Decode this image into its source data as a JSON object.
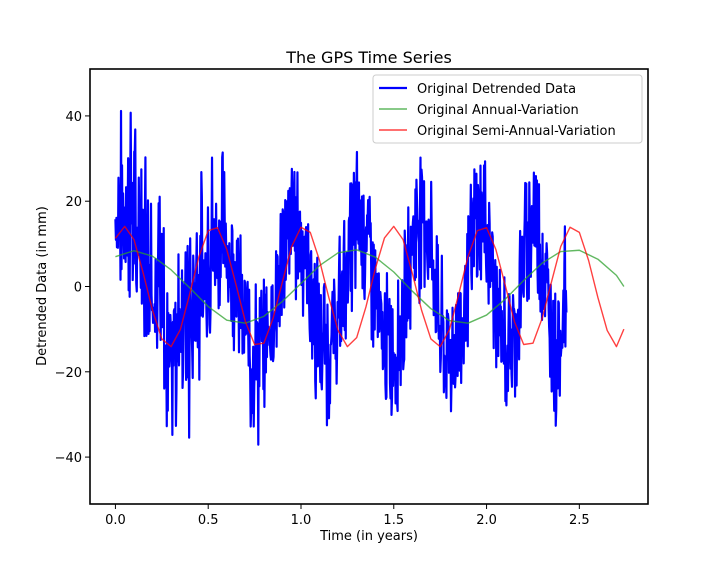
{
  "chart_data": {
    "type": "line",
    "title": "The GPS Time Series",
    "xlabel": "Time (in years)",
    "ylabel": "Detrended Data (in mm)",
    "xlim": [
      -0.137,
      2.87
    ],
    "ylim": [
      -51,
      51
    ],
    "xticks": [
      0.0,
      0.5,
      1.0,
      1.5,
      2.0,
      2.5
    ],
    "xtick_labels": [
      "0.0",
      "0.5",
      "1.0",
      "1.5",
      "2.0",
      "2.5"
    ],
    "yticks": [
      -40,
      -20,
      0,
      20,
      40
    ],
    "ytick_labels": [
      "−40",
      "−20",
      "0",
      "20",
      "40"
    ],
    "grid": false,
    "legend_position": "top-right",
    "series": [
      {
        "name": "Original Detrended Data",
        "color": "#0000ff",
        "x_start": 0.0,
        "x_step": 0.00274,
        "values": [
          15.3,
          24.0,
          17.5,
          15.6,
          14.4,
          11.3,
          26.5,
          21.1,
          18.1,
          16.4,
          15.4,
          24.1,
          14.6,
          20.3,
          13.2,
          20.0,
          16.2,
          11.2,
          19.3,
          18.0,
          11.4,
          29.1,
          9.5,
          11.2,
          13.6,
          21.5,
          11.9,
          36.0,
          10.4,
          15.2,
          31.0,
          22.6,
          12.3,
          26.3,
          10.8,
          5.9,
          8.1,
          16.7,
          15.7,
          28.7,
          14.7,
          7.0,
          7.5,
          6.1,
          12.8,
          21.9,
          24.0,
          17.8,
          5.6,
          4.2,
          5.9,
          20.0,
          12.5,
          0.9,
          9.4,
          13.5,
          16.0,
          5.0,
          11.8,
          25.6,
          6.7,
          -5.7,
          11.8,
          13.3,
          17.0,
          3.6,
          0.2,
          -3.3,
          6.7,
          11.3,
          17.8,
          -2.9,
          -12.9,
          2.8,
          -2.1,
          9.3,
          3.7,
          6.9,
          -7.6,
          0.5,
          3.3,
          -0.2,
          -18.6,
          -10.8,
          3.1,
          10.5,
          -2.3,
          8.6,
          -8.8,
          -20.0,
          6.4,
          -0.6,
          -12.2,
          -13.2,
          -8.3,
          1.1,
          -10.7,
          -27.8,
          -13.8,
          -14.9,
          -8.3,
          -22.2,
          -13.7,
          -15.7,
          0.1,
          -7.6,
          -18.6,
          -18.0,
          -11.4,
          -4.4,
          -21.5,
          -3.0,
          -31.4,
          -5.9,
          -8.5,
          2.8,
          -4.8,
          -18.0,
          2.0,
          -24.2,
          -17.6,
          -10.0,
          -11.1,
          -10.3,
          1.6,
          -13.0,
          -20.7,
          -11.2,
          -20.6,
          -1.1,
          -7.9,
          -4.1,
          -16.2,
          -11.3,
          -22.9,
          -10.3,
          5.8,
          2.5,
          -5.3,
          -15.6,
          -4.6,
          -10.2,
          -1.9,
          -0.7,
          -13.2,
          -20.4,
          -11.1,
          -0.4,
          -5.3,
          0.9,
          -19.1,
          -5.6,
          -8.0,
          5.5,
          -6.0,
          -8.3,
          -6.6,
          3.5,
          -6.3,
          6.7,
          8.3,
          4.2,
          -1.1,
          -1.2,
          4.4,
          -8.8,
          1.4,
          -4.6,
          7.8,
          12.0,
          8.9,
          -4.2,
          7.7,
          -0.8,
          4.3,
          -3.1,
          4.3,
          0.6,
          18.9,
          5.9,
          2.7,
          5.8,
          12.5,
          17.6,
          16.2,
          2.3,
          1.3,
          5.2,
          13.9,
          10.6,
          18.0,
          9.1,
          7.6,
          3.0,
          13.6,
          5.9,
          10.6,
          10.7,
          9.8,
          10.6,
          12.9,
          11.8,
          13.1,
          8.5,
          11.8,
          7.9,
          6.3,
          11.3,
          14.7,
          6.1,
          14.6,
          23.5,
          12.0,
          7.8,
          18.3,
          14.5,
          9.7,
          11.8,
          10.6,
          13.3,
          17.5,
          7.4,
          3.6,
          0.2,
          11.5,
          4.0,
          4.6,
          2.5,
          7.3,
          3.5,
          15.0,
          4.7,
          6.9,
          3.4,
          2.5,
          7.4,
          1.9,
          8.3,
          4.4,
          3.1,
          -1.4,
          -0.7,
          1.2,
          -3.7,
          -2.7,
          -6.5,
          -4.9,
          1.2,
          -3.9,
          -3.1,
          -9.8,
          -13.0,
          -10.2,
          -8.5,
          -13.0,
          -2.4,
          -9.7,
          -8.3,
          -10.1,
          -12.5,
          -10.6,
          -15.3,
          -10.1,
          -8.9,
          -14.7,
          -12.6,
          -26.2,
          -17.6,
          -16.6,
          -13.4,
          -15.5,
          -15.1,
          -17.6,
          -14.1,
          -13.5,
          -9.8,
          -13.8,
          -19.3,
          -11.0,
          -19.4,
          -8.9,
          -21.3,
          -14.2,
          -18.9,
          -12.7,
          -9.1,
          -13.0,
          -14.2,
          -14.6,
          -15.0,
          -14.5,
          -15.2,
          -16.6,
          -16.8,
          -18.6,
          -11.2,
          -6.2,
          -3.6,
          -10.8,
          -17.6,
          -11.7,
          -9.2,
          -11.9,
          -8.0,
          -12.2,
          -9.8,
          -5.0,
          -3.1,
          -6.8,
          -4.8,
          -7.6,
          -2.7,
          -5.4,
          -5.3,
          -4.2,
          -1.3,
          -0.3,
          -2.5,
          0.1,
          3.7,
          -1.4,
          -1.6,
          1.6,
          3.1,
          5.2,
          6.0,
          3.6,
          1.0,
          5.1,
          8.9,
          7.6,
          15.3,
          9.3,
          4.5,
          10.0,
          11.1,
          17.1,
          11.3,
          10.1,
          10.7,
          13.1,
          12.9,
          5.1,
          16.7,
          13.9,
          14.7,
          10.7,
          20.1,
          17.4,
          14.9,
          13.2,
          15.0,
          15.6,
          16.5,
          12.5,
          12.6,
          13.0,
          14.6,
          12.0,
          14.6,
          16.9,
          16.4,
          14.7,
          10.7,
          12.3,
          9.8,
          10.3,
          13.9,
          14.1,
          8.9,
          5.7,
          11.4,
          9.6,
          4.3,
          6.3,
          7.7,
          1.9,
          2.9,
          2.9,
          5.6,
          2.6,
          1.6,
          -0.9,
          -2.9,
          2.2,
          2.1,
          -1.5,
          -6.2,
          -8.3,
          -4.5,
          -7.3,
          -4.4,
          -4.5,
          -11.2,
          -13.9,
          -11.1,
          -7.3,
          -9.6,
          -11.7,
          -11.9,
          -12.9,
          -15.1,
          -12.2,
          -14.4,
          -13.2,
          -16.0,
          -14.4,
          -15.9,
          -15.8,
          -17.6,
          -14.0,
          -10.6,
          -11.2,
          -15.8,
          -15.8,
          -13.3,
          -20.6,
          -12.9,
          -12.5,
          -18.4,
          -16.4,
          -13.1,
          -12.8,
          -13.0,
          -18.2,
          -12.4,
          -16.4,
          -11.9,
          -11.3,
          -10.3,
          -10.3,
          -14.6,
          -12.5,
          -10.0,
          -6.5,
          -6.7,
          -9.1,
          -12.6,
          -8.0,
          -6.6,
          -5.2,
          -4.7,
          -6.2,
          -8.0,
          -4.6,
          -0.5,
          -6.2,
          -0.2,
          -1.3,
          3.0,
          1.2,
          1.4,
          4.3,
          3.3,
          -0.8,
          0.6,
          7.3,
          6.9,
          2.4,
          6.6,
          8.9,
          9.5,
          12.1,
          7.2,
          10.5,
          6.6,
          11.9,
          11.4,
          9.6,
          17.6,
          12.3,
          14.0,
          10.5,
          14.9,
          17.0,
          17.1,
          13.1,
          13.3,
          14.4,
          17.3,
          15.0,
          15.2,
          15.2,
          14.5,
          14.8,
          14.8,
          14.0,
          15.8,
          11.6,
          14.5,
          10.7,
          13.0,
          15.4,
          13.0,
          10.8,
          11.2,
          6.5,
          11.1,
          11.8,
          6.4,
          11.4,
          5.7,
          6.5,
          5.6,
          3.3,
          5.7,
          4.9,
          -0.4,
          0.9,
          1.1,
          3.3,
          -4.2,
          -3.5,
          -2.7,
          -2.2,
          -7.6,
          -6.7,
          -4.9,
          -10.5,
          -12.7,
          -10.0,
          -7.3,
          -11.2,
          -11.1,
          -15.1,
          -18.2,
          -12.2,
          -15.8,
          -13.5,
          -14.4,
          -12.1,
          -12.5,
          -13.0,
          -13.3,
          -11.3,
          -17.3,
          -11.4,
          -16.0,
          -17.9,
          -14.8,
          -16.4,
          -15.3,
          -13.5,
          -17.6,
          -16.0,
          -14.1,
          -14.9,
          -13.8,
          -15.2,
          -15.4,
          -16.3,
          -16.8,
          -14.1,
          -13.6,
          -10.6,
          -11.6,
          -11.3,
          -12.7,
          -7.7,
          -8.1,
          -11.7,
          -11.2,
          -8.5,
          -7.8,
          -6.6,
          -5.5,
          -4.3,
          -4.8,
          -6.4,
          -3.7,
          -6.6,
          -3.4,
          0.6,
          -0.5,
          -0.2,
          2.2,
          2.1,
          6.7,
          4.8,
          4.6,
          5.6,
          9.3,
          10.7,
          10.3,
          13.1,
          10.2,
          12.8,
          10.8,
          12.6,
          10.8,
          18.0,
          14.1,
          14.1,
          15.0,
          13.4,
          16.4,
          15.5,
          21.0,
          14.4,
          16.6,
          17.2,
          16.0,
          16.8,
          15.9,
          15.9,
          19.4,
          19.9,
          17.1,
          16.5,
          18.4,
          17.2,
          13.1,
          14.7,
          13.4,
          12.4,
          11.9,
          11.4,
          14.6,
          9.6,
          9.2,
          7.5,
          10.4,
          7.2,
          4.6,
          5.5,
          8.3,
          5.9,
          1.6,
          2.0,
          -1.2,
          2.7,
          0.4,
          -1.2,
          -2.6,
          -4.4,
          -3.2,
          -5.6,
          -5.1,
          -6.9,
          -13.9,
          -11.4,
          -8.3,
          -10.8,
          -11.4,
          -11.6,
          -10.8,
          -14.1,
          -15.2,
          -15.2,
          -13.9,
          -16.5,
          -17.2,
          -17.0,
          -16.8,
          -14.9,
          -14.6,
          -17.4,
          -14.0,
          -14.9,
          -14.4,
          -16.2,
          -14.7,
          -14.6,
          -16.3,
          -17.6,
          -15.0,
          -13.7,
          -15.8,
          -14.8,
          -12.6,
          -12.3,
          -13.7,
          -14.6,
          -13.7,
          -11.6,
          -12.0,
          -10.2,
          -11.0,
          -8.7,
          -10.1,
          -9.9,
          -5.2,
          -8.3,
          -8.8,
          -2.5,
          -5.1,
          -3.7,
          -3.8,
          -1.0,
          -3.2,
          0.0,
          1.0,
          2.1,
          3.0,
          4.8,
          5.6,
          6.4,
          3.4,
          8.5,
          6.9,
          9.4,
          6.8,
          11.6,
          11.4,
          12.0,
          11.9,
          12.4,
          14.5,
          13.4,
          12.9,
          16.7,
          14.3,
          15.3,
          15.7,
          13.6,
          14.3,
          16.3,
          16.2,
          16.6,
          15.9,
          17.3,
          16.7,
          14.1,
          17.1,
          14.2,
          16.6,
          13.6,
          13.3,
          14.8,
          12.6,
          12.8,
          10.9,
          12.4,
          11.6,
          8.8,
          9.7,
          9.6,
          7.6,
          5.3,
          4.2,
          5.9,
          5.3,
          2.2,
          2.4,
          1.3,
          -1.3,
          -0.6,
          -3.9,
          -2.5,
          -5.2,
          -5.0,
          -5.8,
          -5.4,
          -9.7,
          -10.5,
          -9.6,
          -10.3,
          -11.6,
          -12.6,
          -12.3,
          -12.5,
          -11.8,
          -11.6,
          -13.7,
          -14.4,
          -13.0,
          -14.6,
          -15.2,
          -15.4,
          -15.5,
          -14.2,
          -16.1,
          -14.6,
          -15.6,
          -14.7,
          -14.7,
          -14.4,
          -14.5,
          -13.4,
          -13.2,
          -13.4,
          -12.3,
          -11.2,
          -12.6,
          -10.6,
          -10.0,
          -10.6,
          -10.3,
          -8.8,
          -9.6,
          -6.3,
          -5.1,
          -4.4,
          -5.3,
          -3.8,
          -3.7,
          -0.2,
          0.1,
          0.3,
          1.1,
          2.3,
          4.4,
          4.8,
          5.1,
          6.6,
          8.4,
          7.9,
          8.3,
          9.8,
          10.1,
          12.3,
          11.9,
          12.3,
          12.7,
          14.0,
          13.1,
          14.0,
          15.3,
          13.8,
          14.6,
          15.6,
          15.7,
          14.8,
          16.4,
          14.6,
          15.7,
          15.0,
          15.0,
          14.3,
          14.4,
          13.8,
          13.5,
          12.7,
          12.4,
          11.7,
          11.1,
          10.4,
          9.5,
          8.8,
          8.2,
          6.8,
          6.2,
          5.4,
          3.9,
          3.0,
          1.6,
          0.6,
          -0.5,
          -1.8,
          -3.2,
          -4.0,
          -5.2,
          -6.4,
          -7.3,
          -8.0,
          -9.5,
          -10.3,
          -11.2,
          -11.8,
          -12.5,
          -13.1,
          -13.7,
          -14.0,
          -14.4,
          -14.7,
          -14.8,
          -15.0,
          -14.9,
          -14.7,
          -14.5,
          -14.2,
          -13.8,
          -13.3,
          -12.7,
          -12.0,
          -11.2,
          -10.4,
          -9.5,
          -8.5,
          -7.5,
          -6.4,
          -5.4,
          -4.2,
          -3.1,
          -2.0,
          -0.9,
          0.3,
          1.4
        ],
        "noise_seed": 7
      },
      {
        "name": "Original Annual-Variation",
        "color": "#2ca02c",
        "x": [
          0.0,
          0.1,
          0.2,
          0.3,
          0.4,
          0.5,
          0.6,
          0.7,
          0.8,
          0.9,
          1.0,
          1.1,
          1.2,
          1.3,
          1.4,
          1.5,
          1.6,
          1.7,
          1.8,
          1.9,
          2.0,
          2.1,
          2.2,
          2.3,
          2.4,
          2.5,
          2.6,
          2.7,
          2.74
        ],
        "values": [
          7.0,
          8.4,
          7.1,
          3.9,
          -0.3,
          -4.7,
          -7.9,
          -8.6,
          -7.0,
          -3.5,
          0.7,
          4.9,
          7.9,
          8.6,
          6.9,
          3.4,
          -1.1,
          -5.2,
          -8.0,
          -8.6,
          -6.7,
          -3.0,
          1.4,
          5.5,
          8.2,
          8.5,
          6.4,
          2.6,
          0.0
        ]
      },
      {
        "name": "Original Semi-Annual-Variation",
        "color": "#ff0000",
        "x": [
          0.0,
          0.05,
          0.1,
          0.15,
          0.2,
          0.25,
          0.3,
          0.35,
          0.4,
          0.45,
          0.5,
          0.55,
          0.6,
          0.65,
          0.7,
          0.75,
          0.8,
          0.85,
          0.9,
          0.95,
          1.0,
          1.05,
          1.1,
          1.15,
          1.2,
          1.25,
          1.3,
          1.35,
          1.4,
          1.45,
          1.5,
          1.55,
          1.6,
          1.65,
          1.7,
          1.75,
          1.8,
          1.85,
          1.9,
          1.95,
          2.0,
          2.05,
          2.1,
          2.15,
          2.2,
          2.25,
          2.3,
          2.35,
          2.4,
          2.45,
          2.5,
          2.55,
          2.6,
          2.65,
          2.7,
          2.74
        ],
        "values": [
          11.3,
          14.1,
          11.0,
          3.1,
          -5.6,
          -12.3,
          -14.1,
          -10.1,
          -1.8,
          7.0,
          13.1,
          13.8,
          8.7,
          0.4,
          -8.2,
          -13.6,
          -13.3,
          -7.4,
          1.1,
          9.4,
          13.9,
          12.7,
          6.1,
          -2.6,
          -10.3,
          -14.1,
          -12.0,
          -4.8,
          4.1,
          11.4,
          14.1,
          11.0,
          3.1,
          -5.6,
          -12.3,
          -14.1,
          -10.1,
          -1.8,
          7.0,
          13.1,
          13.8,
          8.7,
          0.4,
          -8.2,
          -13.6,
          -13.3,
          -7.4,
          1.1,
          9.4,
          13.9,
          12.7,
          6.1,
          -2.6,
          -10.3,
          -14.1,
          -10.0
        ]
      }
    ]
  }
}
